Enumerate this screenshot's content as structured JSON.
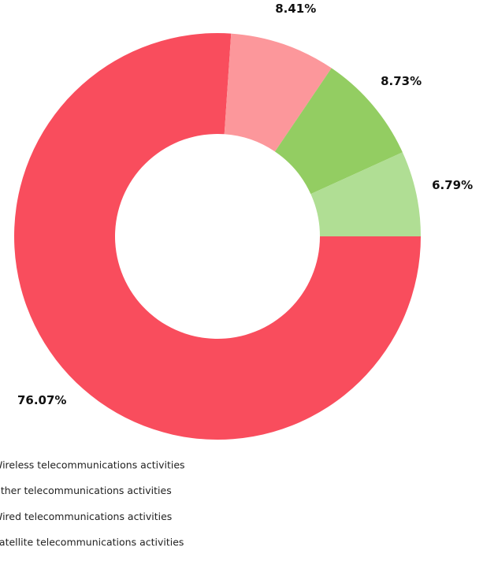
{
  "chart_data": {
    "type": "donut",
    "categories": [
      "Wireless telecommunications activities",
      "Other telecommunications activities",
      "Wired telecommunications activities",
      "Satellite telecommunications activities"
    ],
    "values": [
      76.07,
      8.41,
      8.73,
      6.79
    ],
    "value_labels": [
      "76.07%",
      "8.41%",
      "8.73%",
      "6.79%"
    ],
    "colors": [
      "#f94d5d",
      "#fc979b",
      "#93cd62",
      "#b0de94"
    ],
    "legend": "bottom-left"
  }
}
